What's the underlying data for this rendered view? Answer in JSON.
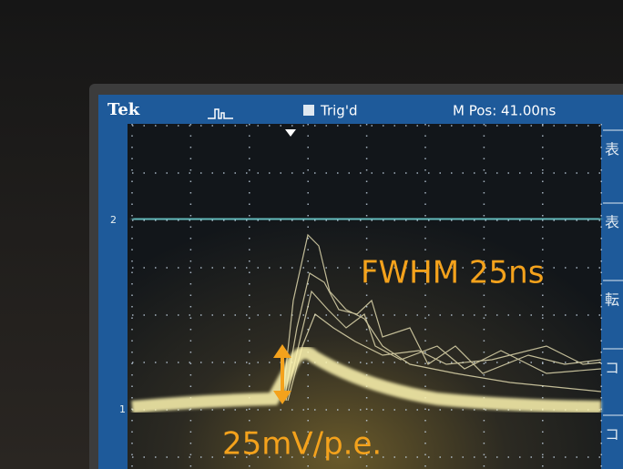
{
  "header": {
    "brand": "Tek",
    "status": "Trig'd",
    "position": "M Pos: 41.00ns"
  },
  "channels": [
    "2",
    "1"
  ],
  "annotations": {
    "width": "FWHM 25ns",
    "gain": "25mV/p.e."
  },
  "side_menu": [
    "表",
    "表",
    "転",
    "コ",
    "コ"
  ]
}
